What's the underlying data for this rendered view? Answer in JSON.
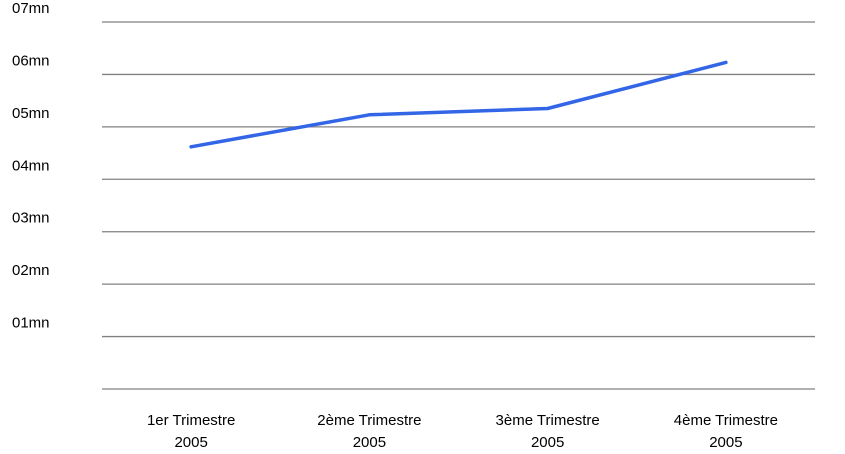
{
  "chart_data": {
    "type": "line",
    "title": "",
    "xlabel": "",
    "ylabel": "",
    "categories": [
      [
        "1er Trimestre",
        "2005"
      ],
      [
        "2ème Trimestre",
        "2005"
      ],
      [
        "3ème Trimestre",
        "2005"
      ],
      [
        "4ème Trimestre",
        "2005"
      ]
    ],
    "y_tick_labels": [
      "07mn",
      "06mn",
      "05mn",
      "04mn",
      "03mn",
      "02mn",
      "01mn"
    ],
    "y_ticks": [
      7,
      6,
      5,
      4,
      3,
      2,
      1
    ],
    "ylim": [
      0,
      7
    ],
    "grid": true,
    "legend": "none",
    "series": [
      {
        "values": [
          4.62,
          5.23,
          5.35,
          6.23
        ],
        "color": "#3366e6"
      }
    ],
    "colors": {
      "line": "#3366e6",
      "grid": "#808080",
      "text": "#000000"
    }
  }
}
